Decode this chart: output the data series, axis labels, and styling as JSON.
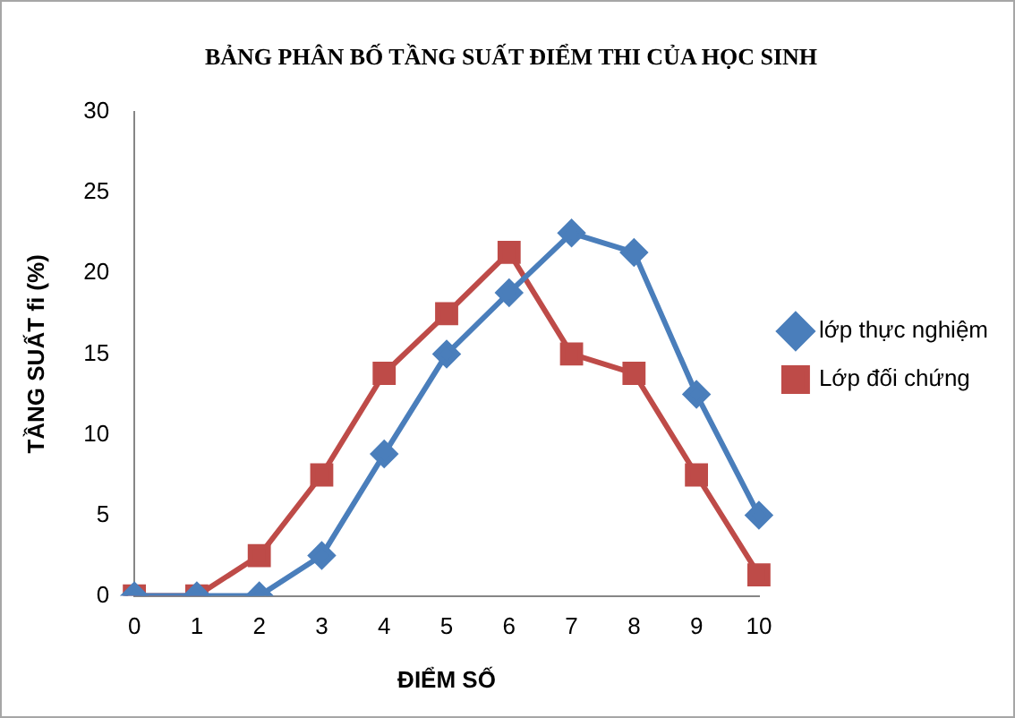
{
  "chart_data": {
    "type": "line",
    "title": "BẢNG PHÂN BỐ TẦNG SUẤT ĐIỂM THI CỦA HỌC SINH",
    "xlabel": "ĐIỂM SỐ",
    "ylabel": "TẦNG SUẤT fi (%)",
    "categories": [
      "0",
      "1",
      "2",
      "3",
      "4",
      "5",
      "6",
      "7",
      "8",
      "9",
      "10"
    ],
    "series": [
      {
        "name": "lớp thực nghiệm",
        "color": "#4a7ebb",
        "marker": "diamond",
        "values": [
          0,
          0,
          0,
          2.5,
          8.8,
          15,
          18.8,
          22.5,
          21.3,
          12.5,
          5
        ]
      },
      {
        "name": "Lớp đối chứng",
        "color": "#be4b48",
        "marker": "square",
        "values": [
          0,
          0,
          2.5,
          7.5,
          13.8,
          17.5,
          21.3,
          15,
          13.8,
          7.5,
          1.3
        ]
      }
    ],
    "ylim": [
      0,
      30
    ],
    "yticks": [
      0,
      5,
      10,
      15,
      20,
      25,
      30
    ],
    "grid": false,
    "legend": "right"
  }
}
